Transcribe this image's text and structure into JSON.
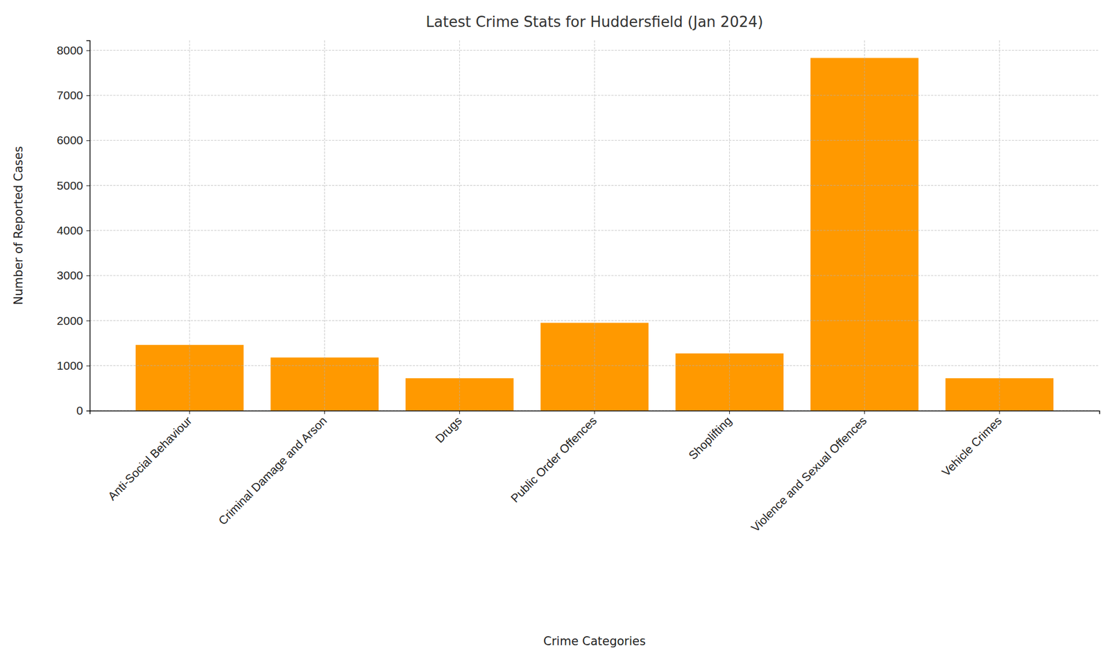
{
  "chart_data": {
    "type": "bar",
    "title": "Latest Crime Stats for Huddersfield (Jan 2024)",
    "x_label": "Crime Categories",
    "y_label": "Number of Reported Cases",
    "categories": [
      "Anti-Social Behaviour",
      "Criminal Damage and Arson",
      "Drugs",
      "Public Order Offences",
      "Shoplifting",
      "Violence and Sexual Offences",
      "Vehicle Crimes"
    ],
    "values": [
      1460,
      1180,
      720,
      1950,
      1270,
      7830,
      720
    ],
    "color": "#ff9900",
    "ylim": [
      0,
      8220
    ],
    "yticks": [
      0,
      1000,
      2000,
      3000,
      4000,
      5000,
      6000,
      7000,
      8000
    ],
    "grid": true
  }
}
